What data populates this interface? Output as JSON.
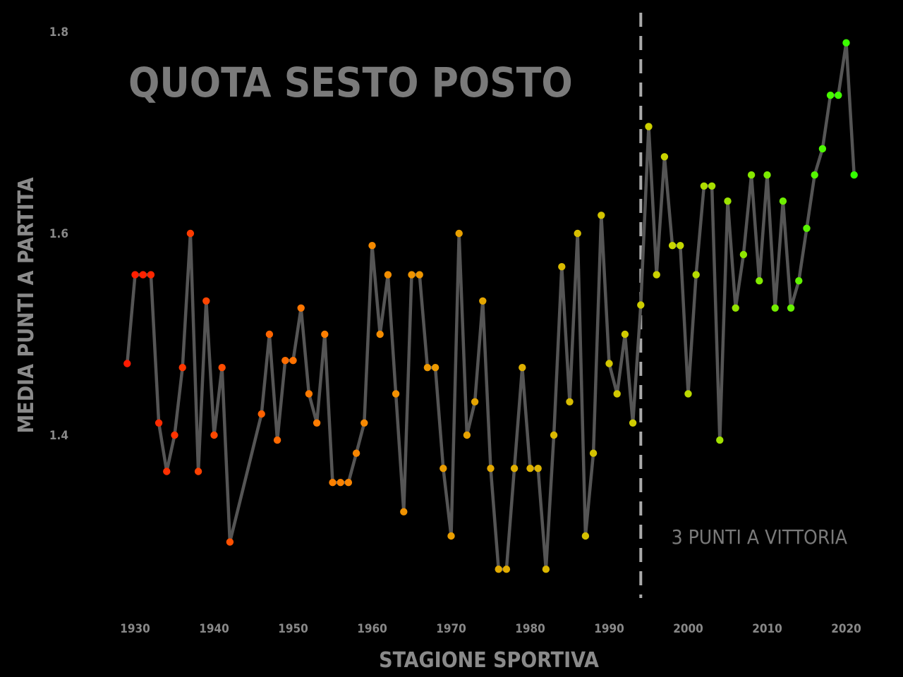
{
  "chart_data": {
    "type": "line",
    "title": "QUOTA SESTO POSTO",
    "xlabel": "STAGIONE SPORTIVA",
    "ylabel": "MEDIA PUNTI A PARTITA",
    "xlim": [
      1927,
      2023
    ],
    "ylim": [
      1.22,
      1.82
    ],
    "x_ticks": [
      1930,
      1940,
      1950,
      1960,
      1970,
      1980,
      1990,
      2000,
      2010,
      2020
    ],
    "y_ticks": [
      1.4,
      1.6,
      1.8
    ],
    "y_tick_labels": [
      "1.4",
      "1.6",
      "1.8"
    ],
    "grid": false,
    "line_color": "#555555",
    "marker_color_scale": [
      "#ff1a00",
      "#ff7a00",
      "#e3a800",
      "#c9d600",
      "#33ff00"
    ],
    "points": [
      [
        1929,
        1.471
      ],
      [
        1930,
        1.559
      ],
      [
        1931,
        1.559
      ],
      [
        1932,
        1.559
      ],
      [
        1933,
        1.412
      ],
      [
        1934,
        1.364
      ],
      [
        1935,
        1.4
      ],
      [
        1936,
        1.467
      ],
      [
        1937,
        1.6
      ],
      [
        1938,
        1.364
      ],
      [
        1939,
        1.533
      ],
      [
        1940,
        1.4
      ],
      [
        1941,
        1.467
      ],
      [
        1942,
        1.294
      ],
      [
        1946,
        1.421
      ],
      [
        1947,
        1.5
      ],
      [
        1948,
        1.395
      ],
      [
        1949,
        1.474
      ],
      [
        1950,
        1.474
      ],
      [
        1951,
        1.526
      ],
      [
        1952,
        1.441
      ],
      [
        1953,
        1.412
      ],
      [
        1954,
        1.5
      ],
      [
        1955,
        1.353
      ],
      [
        1956,
        1.353
      ],
      [
        1957,
        1.353
      ],
      [
        1958,
        1.382
      ],
      [
        1959,
        1.412
      ],
      [
        1960,
        1.588
      ],
      [
        1961,
        1.5
      ],
      [
        1962,
        1.559
      ],
      [
        1963,
        1.441
      ],
      [
        1964,
        1.324
      ],
      [
        1965,
        1.559
      ],
      [
        1966,
        1.559
      ],
      [
        1967,
        1.467
      ],
      [
        1968,
        1.467
      ],
      [
        1969,
        1.367
      ],
      [
        1970,
        1.3
      ],
      [
        1971,
        1.6
      ],
      [
        1972,
        1.4
      ],
      [
        1973,
        1.433
      ],
      [
        1974,
        1.533
      ],
      [
        1975,
        1.367
      ],
      [
        1976,
        1.267
      ],
      [
        1977,
        1.267
      ],
      [
        1978,
        1.367
      ],
      [
        1979,
        1.467
      ],
      [
        1980,
        1.367
      ],
      [
        1981,
        1.367
      ],
      [
        1982,
        1.267
      ],
      [
        1983,
        1.4
      ],
      [
        1984,
        1.567
      ],
      [
        1985,
        1.433
      ],
      [
        1986,
        1.6
      ],
      [
        1987,
        1.3
      ],
      [
        1988,
        1.382
      ],
      [
        1989,
        1.618
      ],
      [
        1990,
        1.471
      ],
      [
        1991,
        1.441
      ],
      [
        1992,
        1.5
      ],
      [
        1993,
        1.412
      ],
      [
        1994,
        1.529
      ],
      [
        1995,
        1.706
      ],
      [
        1996,
        1.559
      ],
      [
        1997,
        1.676
      ],
      [
        1998,
        1.588
      ],
      [
        1999,
        1.588
      ],
      [
        2000,
        1.441
      ],
      [
        2001,
        1.559
      ],
      [
        2002,
        1.647
      ],
      [
        2003,
        1.647
      ],
      [
        2004,
        1.395
      ],
      [
        2005,
        1.632
      ],
      [
        2006,
        1.526
      ],
      [
        2007,
        1.579
      ],
      [
        2008,
        1.658
      ],
      [
        2009,
        1.553
      ],
      [
        2010,
        1.658
      ],
      [
        2011,
        1.526
      ],
      [
        2012,
        1.632
      ],
      [
        2013,
        1.526
      ],
      [
        2014,
        1.553
      ],
      [
        2015,
        1.605
      ],
      [
        2016,
        1.658
      ],
      [
        2017,
        1.684
      ],
      [
        2018,
        1.737
      ],
      [
        2019,
        1.737
      ],
      [
        2020,
        1.789
      ],
      [
        2021,
        1.658
      ]
    ],
    "reference_line": {
      "x": 1994,
      "style": "dashed",
      "color": "#aaaaaa"
    },
    "annotation": {
      "text": "3 PUNTI A VITTORIA",
      "x": 2009,
      "y": 1.3
    }
  }
}
